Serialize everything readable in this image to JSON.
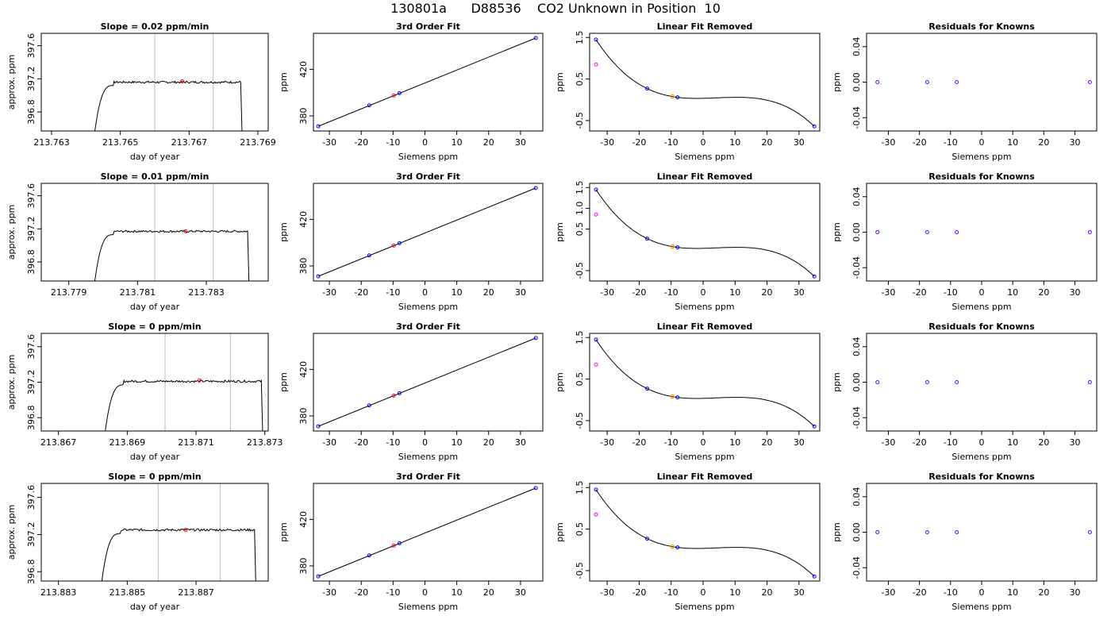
{
  "page_title": "130801a      D88536    CO2 Unknown in Position  10",
  "colors": {
    "trace": "#000000",
    "known_point": "#0000ff",
    "unknown_point": "#ff0000",
    "outlier_point": "#ff00ff",
    "orange_point": "#ff9900",
    "window_line": "#bebebe"
  },
  "chart_data": [
    {
      "row": 1,
      "panels": [
        {
          "type": "line",
          "title": "Slope =  0.02  ppm/min",
          "xlabel": "day of year",
          "ylabel": "approx. ppm",
          "xlim": [
            213.7627,
            213.7693
          ],
          "ylim": [
            396.57,
            397.75
          ],
          "xticks": [
            "213.763",
            "213.765",
            "213.767",
            "213.769"
          ],
          "yticks": [
            "396.8",
            "397.2",
            "397.6"
          ],
          "grid": false,
          "ytick_values": [
            396.8,
            397.2,
            397.6
          ],
          "xtick_values": [
            213.763,
            213.765,
            213.767,
            213.769
          ],
          "vlines": [
            213.766,
            213.7677
          ],
          "baseline": 397.16,
          "start": 213.7642,
          "end": 213.7685,
          "marker": [
            213.7668,
            397.17
          ]
        },
        {
          "type": "scatter",
          "title": "3rd Order Fit",
          "xlabel": "Siemens ppm",
          "ylabel": "ppm",
          "xlim": [
            -35,
            37
          ],
          "ylim": [
            367,
            451
          ],
          "xticks": [
            "-30",
            "-20",
            "-10",
            "0",
            "10",
            "20",
            "30"
          ],
          "yticks": [
            "380",
            "420"
          ],
          "grid": false,
          "fit_line": [
            [
              -33.5,
              371
            ],
            [
              34.8,
              447
            ]
          ],
          "known": [
            [
              -33.5,
              371
            ],
            [
              -17.5,
              389
            ],
            [
              -8,
              399.5
            ],
            [
              34.8,
              447
            ]
          ],
          "unknown": [
            [
              -9.8,
              397.5
            ]
          ]
        },
        {
          "type": "scatter",
          "title": "Linear Fit Removed",
          "xlabel": "Siemens ppm",
          "ylabel": "ppm",
          "xlim": [
            -35.5,
            36.5
          ],
          "ylim": [
            -0.75,
            1.6
          ],
          "xticks": [
            "-30",
            "-20",
            "-10",
            "0",
            "10",
            "20",
            "30"
          ],
          "yticks": [
            "-0.5",
            "0.5",
            "1.5"
          ],
          "grid": false,
          "curve_points": [
            [
              -33.5,
              1.45
            ],
            [
              -17.5,
              0.27
            ],
            [
              -8,
              0.06
            ],
            [
              34.8,
              -0.64
            ]
          ],
          "known": [
            [
              -33.5,
              1.45
            ],
            [
              -17.5,
              0.27
            ],
            [
              -8,
              0.06
            ],
            [
              34.8,
              -0.64
            ]
          ],
          "outlier": [
            [
              -33.5,
              0.85
            ]
          ],
          "orange": [
            [
              -9.6,
              0.08
            ]
          ]
        },
        {
          "type": "scatter",
          "title": "Residuals for Knowns",
          "xlabel": "Siemens ppm",
          "ylabel": "ppm",
          "xlim": [
            -37,
            37
          ],
          "ylim": [
            -0.055,
            0.055
          ],
          "xticks": [
            "-30",
            "-20",
            "-10",
            "0",
            "10",
            "20",
            "30"
          ],
          "yticks": [
            "-0.04",
            "0.00",
            "0.04"
          ],
          "grid": false,
          "known": [
            [
              -33.5,
              0.0
            ],
            [
              -17.5,
              0.0
            ],
            [
              -8,
              0.0
            ],
            [
              34.8,
              0.0
            ]
          ]
        }
      ]
    },
    {
      "row": 2,
      "panels": [
        {
          "type": "line",
          "title": "Slope =  0.01  ppm/min",
          "xlabel": "day of year",
          "ylabel": "approx. ppm",
          "xlim": [
            213.7782,
            213.7848
          ],
          "ylim": [
            396.57,
            397.75
          ],
          "xticks": [
            "213.779",
            "213.781",
            "213.783"
          ],
          "yticks": [
            "396.8",
            "397.2",
            "397.6"
          ],
          "grid": false,
          "ytick_values": [
            396.8,
            397.2,
            397.6
          ],
          "xtick_values": [
            213.779,
            213.781,
            213.783
          ],
          "vlines": [
            213.7815,
            213.7832
          ],
          "baseline": 397.17,
          "start": 213.7797,
          "end": 213.7842,
          "marker": [
            213.7824,
            397.17
          ]
        },
        {
          "type": "scatter",
          "title": "3rd Order Fit",
          "xlabel": "Siemens ppm",
          "ylabel": "ppm",
          "xlim": [
            -35,
            37
          ],
          "ylim": [
            367,
            451
          ],
          "xticks": [
            "-30",
            "-20",
            "-10",
            "0",
            "10",
            "20",
            "30"
          ],
          "yticks": [
            "380",
            "420"
          ],
          "grid": false,
          "fit_line": [
            [
              -33.5,
              371
            ],
            [
              34.8,
              447
            ]
          ],
          "known": [
            [
              -33.5,
              371
            ],
            [
              -17.5,
              389
            ],
            [
              -8,
              399.5
            ],
            [
              34.8,
              447
            ]
          ],
          "unknown": [
            [
              -9.8,
              397.5
            ]
          ]
        },
        {
          "type": "scatter",
          "title": "Linear Fit Removed",
          "xlabel": "Siemens ppm",
          "ylabel": "ppm",
          "xlim": [
            -35.5,
            36.5
          ],
          "ylim": [
            -0.75,
            1.6
          ],
          "xticks": [
            "-30",
            "-20",
            "-10",
            "0",
            "10",
            "20",
            "30"
          ],
          "yticks": [
            "-0.5",
            "0.5",
            "1.0",
            "1.5"
          ],
          "grid": false,
          "curve_points": [
            [
              -33.5,
              1.45
            ],
            [
              -17.5,
              0.27
            ],
            [
              -8,
              0.06
            ],
            [
              34.8,
              -0.64
            ]
          ],
          "known": [
            [
              -33.5,
              1.45
            ],
            [
              -17.5,
              0.27
            ],
            [
              -8,
              0.06
            ],
            [
              34.8,
              -0.64
            ]
          ],
          "outlier": [
            [
              -33.5,
              0.85
            ]
          ],
          "orange": [
            [
              -9.6,
              0.08
            ]
          ]
        },
        {
          "type": "scatter",
          "title": "Residuals for Knowns",
          "xlabel": "Siemens ppm",
          "ylabel": "ppm",
          "xlim": [
            -37,
            37
          ],
          "ylim": [
            -0.055,
            0.055
          ],
          "xticks": [
            "-30",
            "-20",
            "-10",
            "0",
            "10",
            "20",
            "30"
          ],
          "yticks": [
            "-0.04",
            "0.00",
            "0.04"
          ],
          "grid": false,
          "known": [
            [
              -33.5,
              0.0
            ],
            [
              -17.5,
              0.0
            ],
            [
              -8,
              0.0
            ],
            [
              34.8,
              0.0
            ]
          ]
        }
      ]
    },
    {
      "row": 3,
      "panels": [
        {
          "type": "line",
          "title": "Slope =  0  ppm/min",
          "xlabel": "day of year",
          "ylabel": "approx. ppm",
          "xlim": [
            213.8665,
            213.8731
          ],
          "ylim": [
            396.65,
            397.75
          ],
          "xticks": [
            "213.867",
            "213.869",
            "213.871",
            "213.873"
          ],
          "yticks": [
            "396.8",
            "397.2",
            "397.6"
          ],
          "grid": false,
          "ytick_values": [
            396.8,
            397.2,
            397.6
          ],
          "xtick_values": [
            213.867,
            213.869,
            213.871,
            213.873
          ],
          "vlines": [
            213.8701,
            213.872
          ],
          "baseline": 397.21,
          "start": 213.8683,
          "end": 213.8729,
          "marker": [
            213.8711,
            397.22
          ]
        },
        {
          "type": "scatter",
          "title": "3rd Order Fit",
          "xlabel": "Siemens ppm",
          "ylabel": "ppm",
          "xlim": [
            -35,
            37
          ],
          "ylim": [
            367,
            451
          ],
          "xticks": [
            "-30",
            "-20",
            "-10",
            "0",
            "10",
            "20",
            "30"
          ],
          "yticks": [
            "380",
            "420"
          ],
          "grid": false,
          "fit_line": [
            [
              -33.5,
              371
            ],
            [
              34.8,
              447
            ]
          ],
          "known": [
            [
              -33.5,
              371
            ],
            [
              -17.5,
              389
            ],
            [
              -8,
              399.5
            ],
            [
              34.8,
              447
            ]
          ],
          "unknown": [
            [
              -9.8,
              397.5
            ]
          ]
        },
        {
          "type": "scatter",
          "title": "Linear Fit Removed",
          "xlabel": "Siemens ppm",
          "ylabel": "ppm",
          "xlim": [
            -35.5,
            36.5
          ],
          "ylim": [
            -0.75,
            1.6
          ],
          "xticks": [
            "-30",
            "-20",
            "-10",
            "0",
            "10",
            "20",
            "30"
          ],
          "yticks": [
            "-0.5",
            "0.5",
            "1.5"
          ],
          "grid": false,
          "curve_points": [
            [
              -33.5,
              1.45
            ],
            [
              -17.5,
              0.27
            ],
            [
              -8,
              0.06
            ],
            [
              34.8,
              -0.64
            ]
          ],
          "known": [
            [
              -33.5,
              1.45
            ],
            [
              -17.5,
              0.27
            ],
            [
              -8,
              0.06
            ],
            [
              34.8,
              -0.64
            ]
          ],
          "outlier": [
            [
              -33.5,
              0.85
            ]
          ],
          "orange": [
            [
              -9.6,
              0.08
            ]
          ]
        },
        {
          "type": "scatter",
          "title": "Residuals for Knowns",
          "xlabel": "Siemens ppm",
          "ylabel": "ppm",
          "xlim": [
            -37,
            37
          ],
          "ylim": [
            -0.055,
            0.055
          ],
          "xticks": [
            "-30",
            "-20",
            "-10",
            "0",
            "10",
            "20",
            "30"
          ],
          "yticks": [
            "-0.04",
            "0.00",
            "0.04"
          ],
          "grid": false,
          "known": [
            [
              -33.5,
              0.0
            ],
            [
              -17.5,
              0.0
            ],
            [
              -8,
              0.0
            ],
            [
              34.8,
              0.0
            ]
          ]
        }
      ]
    },
    {
      "row": 4,
      "panels": [
        {
          "type": "line",
          "title": "Slope =  0  ppm/min",
          "xlabel": "day of year",
          "ylabel": "approx. ppm",
          "xlim": [
            213.8825,
            213.8891
          ],
          "ylim": [
            396.7,
            397.75
          ],
          "xticks": [
            "213.883",
            "213.885",
            "213.887"
          ],
          "yticks": [
            "396.8",
            "397.2",
            "397.6"
          ],
          "grid": false,
          "ytick_values": [
            396.8,
            397.2,
            397.6
          ],
          "xtick_values": [
            213.883,
            213.885,
            213.887
          ],
          "vlines": [
            213.8859,
            213.8877
          ],
          "baseline": 397.25,
          "start": 213.8842,
          "end": 213.8887,
          "marker": [
            213.8867,
            397.25
          ]
        },
        {
          "type": "scatter",
          "title": "3rd Order Fit",
          "xlabel": "Siemens ppm",
          "ylabel": "ppm",
          "xlim": [
            -35,
            37
          ],
          "ylim": [
            367,
            451
          ],
          "xticks": [
            "-30",
            "-20",
            "-10",
            "0",
            "10",
            "20",
            "30"
          ],
          "yticks": [
            "380",
            "420"
          ],
          "grid": false,
          "fit_line": [
            [
              -33.5,
              371
            ],
            [
              34.8,
              447
            ]
          ],
          "known": [
            [
              -33.5,
              371
            ],
            [
              -17.5,
              389
            ],
            [
              -8,
              399.5
            ],
            [
              34.8,
              447
            ]
          ],
          "unknown": [
            [
              -9.8,
              397.5
            ]
          ]
        },
        {
          "type": "scatter",
          "title": "Linear Fit Removed",
          "xlabel": "Siemens ppm",
          "ylabel": "ppm",
          "xlim": [
            -35.5,
            36.5
          ],
          "ylim": [
            -0.75,
            1.6
          ],
          "xticks": [
            "-30",
            "-20",
            "-10",
            "0",
            "10",
            "20",
            "30"
          ],
          "yticks": [
            "-0.5",
            "0.5",
            "1.5"
          ],
          "grid": false,
          "curve_points": [
            [
              -33.5,
              1.45
            ],
            [
              -17.5,
              0.27
            ],
            [
              -8,
              0.06
            ],
            [
              34.8,
              -0.64
            ]
          ],
          "known": [
            [
              -33.5,
              1.45
            ],
            [
              -17.5,
              0.27
            ],
            [
              -8,
              0.06
            ],
            [
              34.8,
              -0.64
            ]
          ],
          "outlier": [
            [
              -33.5,
              0.85
            ]
          ],
          "orange": [
            [
              -9.6,
              0.08
            ]
          ]
        },
        {
          "type": "scatter",
          "title": "Residuals for Knowns",
          "xlabel": "Siemens ppm",
          "ylabel": "ppm",
          "xlim": [
            -37,
            37
          ],
          "ylim": [
            -0.055,
            0.055
          ],
          "xticks": [
            "-30",
            "-20",
            "-10",
            "0",
            "10",
            "20",
            "30"
          ],
          "yticks": [
            "-0.04",
            "0.00",
            "0.04"
          ],
          "grid": false,
          "known": [
            [
              -33.5,
              0.0
            ],
            [
              -17.5,
              0.0
            ],
            [
              -8,
              0.0
            ],
            [
              34.8,
              0.0
            ]
          ]
        }
      ]
    }
  ]
}
